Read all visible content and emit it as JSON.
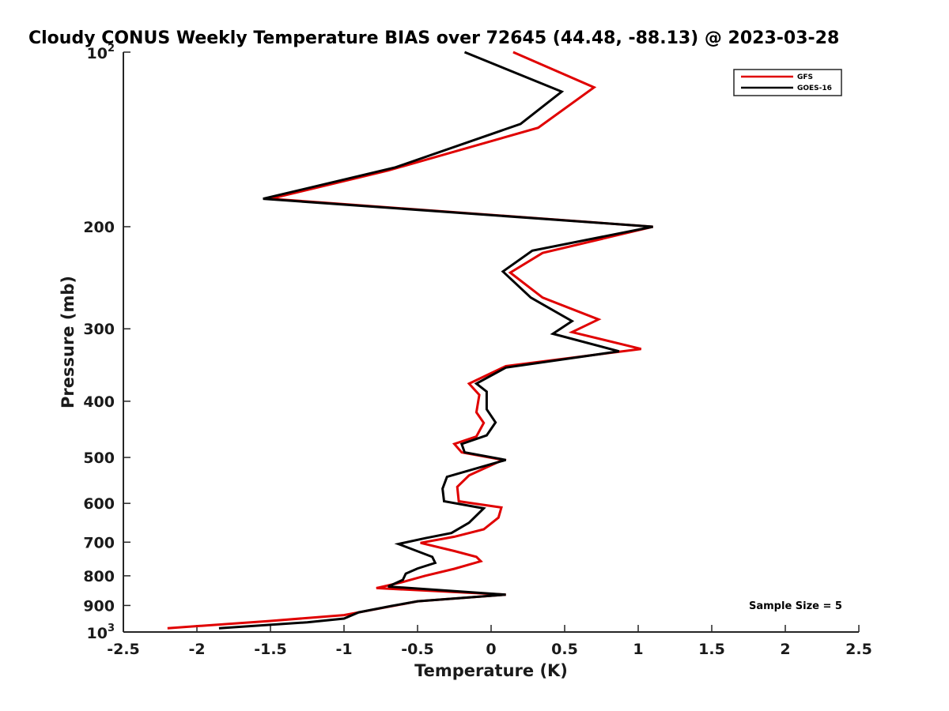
{
  "chart_data": {
    "type": "line",
    "title": "Cloudy CONUS Weekly Temperature BIAS over 72645 (44.48, -88.13) @ 2023-03-28",
    "xlabel": "Temperature (K)",
    "ylabel": "Pressure (mb)",
    "xlim": [
      -2.5,
      2.5
    ],
    "ylim": [
      100,
      1000
    ],
    "yscale": "log",
    "y_reversed": true,
    "grid": false,
    "legend_position": "top-right",
    "annotation": "Sample Size = 5",
    "x_ticks": [
      -2.5,
      -2,
      -1.5,
      -1,
      -0.5,
      0,
      0.5,
      1,
      1.5,
      2,
      2.5
    ],
    "x_tick_labels": [
      "-2.5",
      "-2",
      "-1.5",
      "-1",
      "-0.5",
      "0",
      "0.5",
      "1",
      "1.5",
      "2",
      "2.5"
    ],
    "y_ticks": [
      {
        "value": 100,
        "base": "10",
        "exp": "2"
      },
      {
        "value": 200,
        "label": "200"
      },
      {
        "value": 300,
        "label": "300"
      },
      {
        "value": 400,
        "label": "400"
      },
      {
        "value": 500,
        "label": "500"
      },
      {
        "value": 600,
        "label": "600"
      },
      {
        "value": 700,
        "label": "700"
      },
      {
        "value": 800,
        "label": "800"
      },
      {
        "value": 900,
        "label": "900"
      },
      {
        "value": 1000,
        "base": "10",
        "exp": "3"
      }
    ],
    "series": [
      {
        "name": "GFS",
        "color": "#e00000",
        "points": [
          {
            "x": 0.15,
            "y": 100
          },
          {
            "x": 0.7,
            "y": 115
          },
          {
            "x": 0.32,
            "y": 135
          },
          {
            "x": -0.7,
            "y": 160
          },
          {
            "x": -1.5,
            "y": 179
          },
          {
            "x": 1.1,
            "y": 200
          },
          {
            "x": 0.35,
            "y": 222
          },
          {
            "x": 0.13,
            "y": 240
          },
          {
            "x": 0.35,
            "y": 265
          },
          {
            "x": 0.73,
            "y": 289
          },
          {
            "x": 0.55,
            "y": 304
          },
          {
            "x": 1.02,
            "y": 325
          },
          {
            "x": 0.1,
            "y": 348
          },
          {
            "x": -0.15,
            "y": 373
          },
          {
            "x": -0.08,
            "y": 390
          },
          {
            "x": -0.1,
            "y": 418
          },
          {
            "x": -0.05,
            "y": 436
          },
          {
            "x": -0.1,
            "y": 460
          },
          {
            "x": -0.25,
            "y": 474
          },
          {
            "x": -0.2,
            "y": 490
          },
          {
            "x": 0.08,
            "y": 505
          },
          {
            "x": -0.15,
            "y": 537
          },
          {
            "x": -0.23,
            "y": 562
          },
          {
            "x": -0.22,
            "y": 595
          },
          {
            "x": 0.07,
            "y": 610
          },
          {
            "x": 0.05,
            "y": 635
          },
          {
            "x": -0.05,
            "y": 665
          },
          {
            "x": -0.25,
            "y": 685
          },
          {
            "x": -0.48,
            "y": 702
          },
          {
            "x": -0.25,
            "y": 725
          },
          {
            "x": -0.1,
            "y": 742
          },
          {
            "x": -0.07,
            "y": 755
          },
          {
            "x": -0.25,
            "y": 778
          },
          {
            "x": -0.45,
            "y": 800
          },
          {
            "x": -0.6,
            "y": 820
          },
          {
            "x": -0.78,
            "y": 840
          },
          {
            "x": 0.1,
            "y": 862
          },
          {
            "x": -0.5,
            "y": 885
          },
          {
            "x": -0.7,
            "y": 905
          },
          {
            "x": -1.0,
            "y": 935
          },
          {
            "x": -1.5,
            "y": 957
          },
          {
            "x": -2.2,
            "y": 985
          }
        ]
      },
      {
        "name": "GOES-16",
        "color": "#000000",
        "points": [
          {
            "x": -0.18,
            "y": 100
          },
          {
            "x": 0.48,
            "y": 117
          },
          {
            "x": 0.2,
            "y": 133
          },
          {
            "x": -0.65,
            "y": 158
          },
          {
            "x": -1.55,
            "y": 179
          },
          {
            "x": 1.1,
            "y": 200
          },
          {
            "x": 0.28,
            "y": 220
          },
          {
            "x": 0.08,
            "y": 239
          },
          {
            "x": 0.27,
            "y": 265
          },
          {
            "x": 0.55,
            "y": 291
          },
          {
            "x": 0.42,
            "y": 306
          },
          {
            "x": 0.87,
            "y": 328
          },
          {
            "x": 0.1,
            "y": 350
          },
          {
            "x": -0.1,
            "y": 373
          },
          {
            "x": -0.03,
            "y": 385
          },
          {
            "x": -0.03,
            "y": 413
          },
          {
            "x": 0.03,
            "y": 435
          },
          {
            "x": -0.03,
            "y": 458
          },
          {
            "x": -0.2,
            "y": 474
          },
          {
            "x": -0.18,
            "y": 490
          },
          {
            "x": 0.1,
            "y": 505
          },
          {
            "x": -0.3,
            "y": 540
          },
          {
            "x": -0.33,
            "y": 566
          },
          {
            "x": -0.32,
            "y": 595
          },
          {
            "x": -0.05,
            "y": 612
          },
          {
            "x": -0.15,
            "y": 648
          },
          {
            "x": -0.27,
            "y": 675
          },
          {
            "x": -0.45,
            "y": 689
          },
          {
            "x": -0.63,
            "y": 705
          },
          {
            "x": -0.4,
            "y": 742
          },
          {
            "x": -0.38,
            "y": 760
          },
          {
            "x": -0.5,
            "y": 777
          },
          {
            "x": -0.58,
            "y": 793
          },
          {
            "x": -0.6,
            "y": 813
          },
          {
            "x": -0.7,
            "y": 835
          },
          {
            "x": 0.1,
            "y": 862
          },
          {
            "x": -0.5,
            "y": 885
          },
          {
            "x": -0.68,
            "y": 902
          },
          {
            "x": -0.9,
            "y": 925
          },
          {
            "x": -1.0,
            "y": 948
          },
          {
            "x": -1.25,
            "y": 962
          },
          {
            "x": -1.85,
            "y": 985
          }
        ]
      }
    ]
  }
}
